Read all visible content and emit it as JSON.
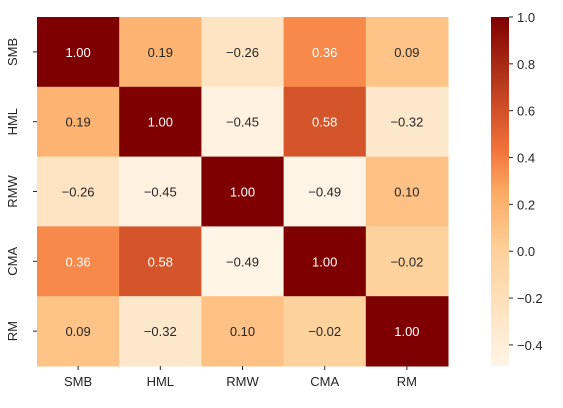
{
  "chart_data": {
    "type": "heatmap",
    "title": "",
    "xlabel": "",
    "ylabel": "",
    "x_labels": [
      "SMB",
      "HML",
      "RMW",
      "CMA",
      "RM"
    ],
    "y_labels": [
      "SMB",
      "HML",
      "RMW",
      "CMA",
      "RM"
    ],
    "values": [
      [
        1.0,
        0.19,
        -0.26,
        0.36,
        0.09
      ],
      [
        0.19,
        1.0,
        -0.45,
        0.58,
        -0.32
      ],
      [
        -0.26,
        -0.45,
        1.0,
        -0.49,
        0.1
      ],
      [
        0.36,
        0.58,
        -0.49,
        1.0,
        -0.02
      ],
      [
        0.09,
        -0.32,
        0.1,
        -0.02,
        1.0
      ]
    ],
    "cell_labels": [
      [
        "1.00",
        "0.19",
        "−0.26",
        "0.36",
        "0.09"
      ],
      [
        "0.19",
        "1.00",
        "−0.45",
        "0.58",
        "−0.32"
      ],
      [
        "−0.26",
        "−0.45",
        "1.00",
        "−0.49",
        "0.10"
      ],
      [
        "0.36",
        "0.58",
        "−0.49",
        "1.00",
        "−0.02"
      ],
      [
        "0.09",
        "−0.32",
        "0.10",
        "−0.02",
        "1.00"
      ]
    ],
    "colormap": "OrRd-like",
    "color_range": [
      -0.49,
      1.0
    ],
    "colorbar_ticks": [
      1.0,
      0.8,
      0.6,
      0.4,
      0.2,
      0.0,
      -0.2,
      -0.4
    ],
    "colorbar_tick_labels": [
      "1.0",
      "0.8",
      "0.6",
      "0.4",
      "0.2",
      "0.0",
      "−0.2",
      "−0.4"
    ],
    "colors": {
      "low": "#fff5e6",
      "mid_low": "#fdd09a",
      "mid": "#fdaa64",
      "mid_high": "#f3723a",
      "high": "#7f0000"
    }
  }
}
